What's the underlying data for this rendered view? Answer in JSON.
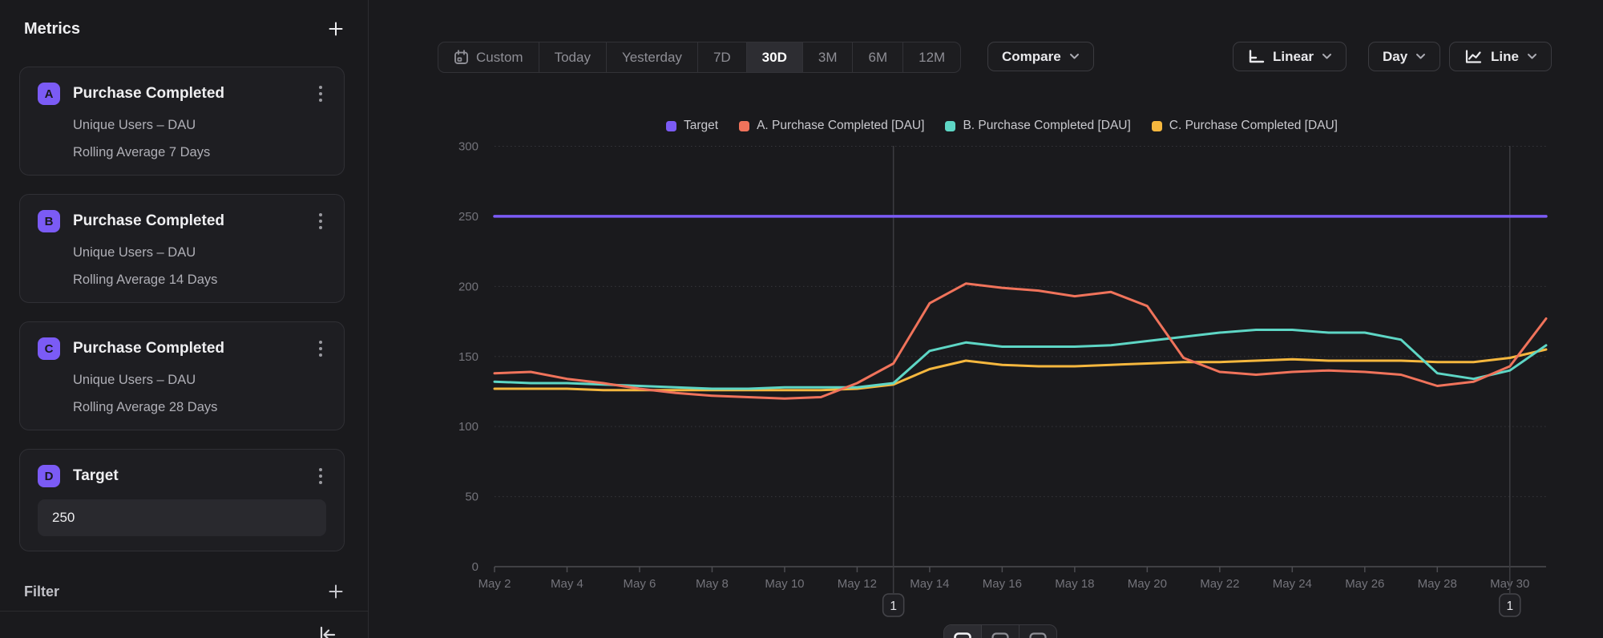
{
  "sidebar": {
    "title": "Metrics",
    "metrics": [
      {
        "letter": "A",
        "title": "Purchase Completed",
        "line1": "Unique Users – DAU",
        "line2": "Rolling Average 7 Days"
      },
      {
        "letter": "B",
        "title": "Purchase Completed",
        "line1": "Unique Users – DAU",
        "line2": "Rolling Average 14 Days"
      },
      {
        "letter": "C",
        "title": "Purchase Completed",
        "line1": "Unique Users – DAU",
        "line2": "Rolling Average 28 Days"
      },
      {
        "letter": "D",
        "title": "Target",
        "value": "250"
      }
    ],
    "filter_label": "Filter",
    "badge_color": "#7B5BF5"
  },
  "toolbar": {
    "ranges": [
      "Custom",
      "Today",
      "Yesterday",
      "7D",
      "30D",
      "3M",
      "6M",
      "12M"
    ],
    "active_range": "30D",
    "compare_label": "Compare",
    "scale_label": "Linear",
    "interval_label": "Day",
    "chart_type_label": "Line"
  },
  "icons": [
    "plus-icon",
    "kebab-menu-icon",
    "calendar-icon",
    "chevron-down-icon",
    "linear-scale-icon",
    "line-chart-icon",
    "collapse-sidebar-icon",
    "view-chart-icon",
    "view-split-icon",
    "view-table-icon"
  ],
  "chart_data": {
    "type": "line",
    "x": [
      "May 2",
      "May 3",
      "May 4",
      "May 5",
      "May 6",
      "May 7",
      "May 8",
      "May 9",
      "May 10",
      "May 11",
      "May 12",
      "May 13",
      "May 14",
      "May 15",
      "May 16",
      "May 17",
      "May 18",
      "May 19",
      "May 20",
      "May 21",
      "May 22",
      "May 23",
      "May 24",
      "May 25",
      "May 26",
      "May 27",
      "May 28",
      "May 29",
      "May 30",
      "May 31"
    ],
    "x_tick_every": 2,
    "ylim": [
      0,
      300
    ],
    "yticks": [
      0,
      50,
      100,
      150,
      200,
      250,
      300
    ],
    "grid": "dotted horizontal",
    "legend_position": "top-center",
    "series": [
      {
        "name": "Target",
        "color": "#7B5BF5",
        "values": [
          250,
          250,
          250,
          250,
          250,
          250,
          250,
          250,
          250,
          250,
          250,
          250,
          250,
          250,
          250,
          250,
          250,
          250,
          250,
          250,
          250,
          250,
          250,
          250,
          250,
          250,
          250,
          250,
          250,
          250
        ]
      },
      {
        "name": "A. Purchase Completed [DAU]",
        "color": "#F0735B",
        "values": [
          138,
          139,
          134,
          131,
          127,
          124,
          122,
          121,
          120,
          121,
          131,
          145,
          188,
          202,
          199,
          197,
          193,
          196,
          186,
          149,
          139,
          137,
          139,
          140,
          139,
          137,
          129,
          132,
          143,
          177
        ]
      },
      {
        "name": "B. Purchase Completed [DAU]",
        "color": "#5ED6C5",
        "values": [
          132,
          131,
          131,
          130,
          129,
          128,
          127,
          127,
          128,
          128,
          128,
          131,
          154,
          160,
          157,
          157,
          157,
          158,
          161,
          164,
          167,
          169,
          169,
          167,
          167,
          162,
          138,
          134,
          140,
          158
        ]
      },
      {
        "name": "C. Purchase Completed [DAU]",
        "color": "#F5B73E",
        "values": [
          127,
          127,
          127,
          126,
          126,
          126,
          126,
          126,
          126,
          126,
          127,
          130,
          141,
          147,
          144,
          143,
          143,
          144,
          145,
          146,
          146,
          147,
          148,
          147,
          147,
          147,
          146,
          146,
          149,
          155
        ]
      }
    ],
    "annotations": [
      {
        "x_label": "May 13",
        "label": "1"
      },
      {
        "x_label": "May 30",
        "label": "1"
      }
    ]
  }
}
